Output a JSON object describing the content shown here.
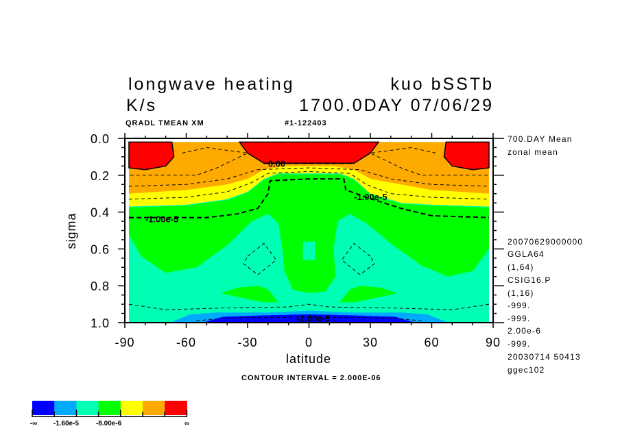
{
  "chart_data": {
    "type": "contour",
    "title_line1_left": "longwave heating",
    "title_line1_right": "kuo bSSTb",
    "title_line2_left": "K/s",
    "title_line2_right": "1700.0DAY 07/06/29",
    "subtitle_left": "QRADL TMEAN XM",
    "subtitle_right": "#1-122403",
    "xlabel": "latitude",
    "ylabel": "sigma",
    "xlim": [
      -90,
      90
    ],
    "ylim": [
      0.0,
      1.0
    ],
    "x_ticks": [
      "-90",
      "-60",
      "-30",
      "0",
      "30",
      "60",
      "90"
    ],
    "x_tick_values": [
      -90,
      -60,
      -30,
      0,
      30,
      60,
      90
    ],
    "y_ticks": [
      "0.0",
      "0.2",
      "0.4",
      "0.6",
      "0.8",
      "1.0"
    ],
    "y_tick_values": [
      0.0,
      0.2,
      0.4,
      0.6,
      0.8,
      1.0
    ],
    "contour_interval_text": "CONTOUR INTERVAL = 2.000E-06",
    "colors": {
      "blue": "#0000ff",
      "lightblue": "#00aaff",
      "aqua": "#00ffb4",
      "green": "#00ff00",
      "yellow": "#ffff00",
      "orange": "#ffaa00",
      "red": "#ff0000"
    },
    "filled_regions": [
      {
        "color": "aqua",
        "points": [
          [
            -88,
            0.02
          ],
          [
            88,
            0.02
          ],
          [
            88,
            1.0
          ],
          [
            -88,
            1.0
          ]
        ]
      },
      {
        "color": "yellow",
        "points": [
          [
            -88,
            0.02
          ],
          [
            88,
            0.02
          ],
          [
            88,
            0.37
          ],
          [
            60,
            0.36
          ],
          [
            45,
            0.35
          ],
          [
            30,
            0.3
          ],
          [
            22,
            0.22
          ],
          [
            15,
            0.19
          ],
          [
            0,
            0.19
          ],
          [
            -15,
            0.19
          ],
          [
            -22,
            0.22
          ],
          [
            -30,
            0.29
          ],
          [
            -40,
            0.33
          ],
          [
            -60,
            0.36
          ],
          [
            -88,
            0.37
          ]
        ]
      },
      {
        "color": "orange",
        "points": [
          [
            -88,
            0.02
          ],
          [
            88,
            0.02
          ],
          [
            88,
            0.3
          ],
          [
            60,
            0.28
          ],
          [
            45,
            0.25
          ],
          [
            30,
            0.22
          ],
          [
            22,
            0.17
          ],
          [
            12,
            0.15
          ],
          [
            0,
            0.15
          ],
          [
            -12,
            0.15
          ],
          [
            -22,
            0.17
          ],
          [
            -30,
            0.22
          ],
          [
            -40,
            0.25
          ],
          [
            -60,
            0.28
          ],
          [
            -88,
            0.3
          ]
        ]
      },
      {
        "color": "green",
        "points": [
          [
            -88,
            0.375
          ],
          [
            -60,
            0.365
          ],
          [
            -40,
            0.335
          ],
          [
            -30,
            0.295
          ],
          [
            -22,
            0.225
          ],
          [
            -15,
            0.195
          ],
          [
            0,
            0.195
          ],
          [
            15,
            0.195
          ],
          [
            22,
            0.225
          ],
          [
            30,
            0.305
          ],
          [
            45,
            0.355
          ],
          [
            60,
            0.365
          ],
          [
            88,
            0.375
          ],
          [
            88,
            0.6
          ],
          [
            80,
            0.72
          ],
          [
            68,
            0.75
          ],
          [
            55,
            0.69
          ],
          [
            40,
            0.57
          ],
          [
            28,
            0.46
          ],
          [
            20,
            0.41
          ],
          [
            14,
            0.45
          ],
          [
            12,
            0.6
          ],
          [
            13,
            0.75
          ],
          [
            8,
            0.83
          ],
          [
            0,
            0.84
          ],
          [
            -8,
            0.82
          ],
          [
            -12,
            0.72
          ],
          [
            -13,
            0.6
          ],
          [
            -15,
            0.46
          ],
          [
            -20,
            0.41
          ],
          [
            -28,
            0.45
          ],
          [
            -40,
            0.58
          ],
          [
            -55,
            0.7
          ],
          [
            -70,
            0.73
          ],
          [
            -82,
            0.64
          ],
          [
            -88,
            0.52
          ]
        ]
      },
      {
        "color": "aqua",
        "points": [
          [
            -3,
            0.56
          ],
          [
            3,
            0.56
          ],
          [
            3,
            0.66
          ],
          [
            -3,
            0.66
          ]
        ]
      },
      {
        "color": "green",
        "points": [
          [
            -43,
            0.84
          ],
          [
            -35,
            0.81
          ],
          [
            -25,
            0.8
          ],
          [
            -20,
            0.82
          ],
          [
            -15,
            0.89
          ],
          [
            -22,
            0.89
          ],
          [
            -35,
            0.86
          ]
        ]
      },
      {
        "color": "green",
        "points": [
          [
            43,
            0.84
          ],
          [
            35,
            0.81
          ],
          [
            25,
            0.8
          ],
          [
            20,
            0.82
          ],
          [
            15,
            0.89
          ],
          [
            22,
            0.89
          ],
          [
            35,
            0.86
          ]
        ]
      },
      {
        "color": "red",
        "points": [
          [
            -34,
            0.02
          ],
          [
            34,
            0.02
          ],
          [
            30,
            0.08
          ],
          [
            22,
            0.135
          ],
          [
            -22,
            0.135
          ],
          [
            -30,
            0.08
          ]
        ]
      },
      {
        "color": "red",
        "points": [
          [
            -88,
            0.02
          ],
          [
            -67,
            0.02
          ],
          [
            -66,
            0.1
          ],
          [
            -70,
            0.15
          ],
          [
            -80,
            0.17
          ],
          [
            -88,
            0.16
          ]
        ]
      },
      {
        "color": "red",
        "points": [
          [
            88,
            0.02
          ],
          [
            67,
            0.02
          ],
          [
            66,
            0.1
          ],
          [
            70,
            0.15
          ],
          [
            80,
            0.17
          ],
          [
            88,
            0.16
          ]
        ]
      },
      {
        "color": "lightblue",
        "points": [
          [
            -68,
            1.0
          ],
          [
            -58,
            0.955
          ],
          [
            -45,
            0.945
          ],
          [
            -20,
            0.945
          ],
          [
            0,
            0.935
          ],
          [
            20,
            0.945
          ],
          [
            45,
            0.945
          ],
          [
            58,
            0.955
          ],
          [
            68,
            1.0
          ]
        ]
      },
      {
        "color": "blue",
        "points": [
          [
            -52,
            1.0
          ],
          [
            -42,
            0.968
          ],
          [
            -20,
            0.96
          ],
          [
            0,
            0.955
          ],
          [
            20,
            0.96
          ],
          [
            42,
            0.968
          ],
          [
            52,
            1.0
          ]
        ]
      }
    ],
    "contour_lines": [
      {
        "label": "0.00",
        "label_at": [
          -20,
          0.14
        ],
        "bold": true,
        "points": [
          [
            -22,
            0.135
          ],
          [
            -10,
            0.135
          ],
          [
            10,
            0.135
          ],
          [
            22,
            0.135
          ]
        ]
      },
      {
        "label": "-1.00e-5",
        "label_at": [
          -80,
          0.44
        ],
        "bold": true,
        "points": [
          [
            -88,
            0.43
          ],
          [
            -70,
            0.43
          ],
          [
            -50,
            0.43
          ],
          [
            -35,
            0.41
          ],
          [
            -25,
            0.38
          ],
          [
            -20,
            0.3
          ],
          [
            -19,
            0.23
          ],
          [
            0,
            0.22
          ],
          [
            17,
            0.22
          ],
          [
            18,
            0.28
          ],
          [
            28,
            0.32
          ],
          [
            45,
            0.38
          ],
          [
            60,
            0.42
          ],
          [
            88,
            0.43
          ]
        ]
      },
      {
        "label": "-1.00e-5",
        "label_at": [
          22,
          0.32
        ],
        "bold": true,
        "points": []
      },
      {
        "label": "-2.00e-5",
        "label_at": [
          -6,
          0.98
        ],
        "bold": false,
        "points": [
          [
            -55,
            0.99
          ],
          [
            -40,
            0.975
          ],
          [
            0,
            0.97
          ],
          [
            40,
            0.975
          ],
          [
            55,
            0.99
          ]
        ]
      },
      {
        "label": "",
        "label_at": null,
        "bold": false,
        "points": [
          [
            -88,
            0.26
          ],
          [
            -60,
            0.25
          ],
          [
            -40,
            0.22
          ],
          [
            -25,
            0.17
          ],
          [
            0,
            0.16
          ],
          [
            25,
            0.17
          ],
          [
            40,
            0.22
          ],
          [
            60,
            0.25
          ],
          [
            88,
            0.26
          ]
        ]
      },
      {
        "label": "",
        "label_at": null,
        "bold": false,
        "points": [
          [
            -88,
            0.33
          ],
          [
            -60,
            0.32
          ],
          [
            -40,
            0.29
          ],
          [
            -28,
            0.24
          ],
          [
            -20,
            0.19
          ],
          [
            0,
            0.18
          ],
          [
            20,
            0.19
          ],
          [
            28,
            0.25
          ],
          [
            40,
            0.3
          ],
          [
            60,
            0.32
          ],
          [
            88,
            0.33
          ]
        ]
      },
      {
        "label": "",
        "label_at": null,
        "bold": false,
        "points": [
          [
            -62,
            0.08
          ],
          [
            -50,
            0.05
          ],
          [
            -30,
            0.08
          ],
          [
            -45,
            0.16
          ],
          [
            -55,
            0.2
          ],
          [
            -88,
            0.2
          ]
        ]
      },
      {
        "label": "",
        "label_at": null,
        "bold": false,
        "points": [
          [
            62,
            0.08
          ],
          [
            50,
            0.05
          ],
          [
            30,
            0.08
          ],
          [
            45,
            0.16
          ],
          [
            55,
            0.2
          ],
          [
            88,
            0.2
          ]
        ]
      },
      {
        "label": "",
        "label_at": null,
        "bold": false,
        "points": [
          [
            -30,
            0.64
          ],
          [
            -22,
            0.57
          ],
          [
            -16,
            0.66
          ],
          [
            -25,
            0.74
          ],
          [
            -32,
            0.68
          ],
          [
            -30,
            0.64
          ]
        ]
      },
      {
        "label": "",
        "label_at": null,
        "bold": false,
        "points": [
          [
            30,
            0.64
          ],
          [
            22,
            0.57
          ],
          [
            16,
            0.66
          ],
          [
            25,
            0.74
          ],
          [
            32,
            0.68
          ],
          [
            30,
            0.64
          ]
        ]
      },
      {
        "label": "",
        "label_at": null,
        "bold": false,
        "points": [
          [
            -88,
            0.9
          ],
          [
            -70,
            0.93
          ],
          [
            -40,
            0.92
          ],
          [
            -10,
            0.915
          ],
          [
            0,
            0.9
          ],
          [
            10,
            0.915
          ],
          [
            40,
            0.92
          ],
          [
            70,
            0.93
          ],
          [
            88,
            0.9
          ]
        ]
      }
    ],
    "colorbar": {
      "colors": [
        "blue",
        "lightblue",
        "aqua",
        "green",
        "yellow",
        "orange",
        "red"
      ],
      "labels": [
        "-∞",
        "-1.60e-5",
        "-8.00e-6",
        "∞"
      ]
    }
  },
  "info_panel": {
    "lines": [
      "700.DAY Mean",
      "zonal mean",
      "20070629000000",
      "GGLA64",
      "(1,64)",
      "CSIG16.P",
      "(1,16)",
      "-999.",
      "-999.",
      "2.00e-6",
      "-999.",
      "20030714  50413",
      "ggec102"
    ]
  }
}
